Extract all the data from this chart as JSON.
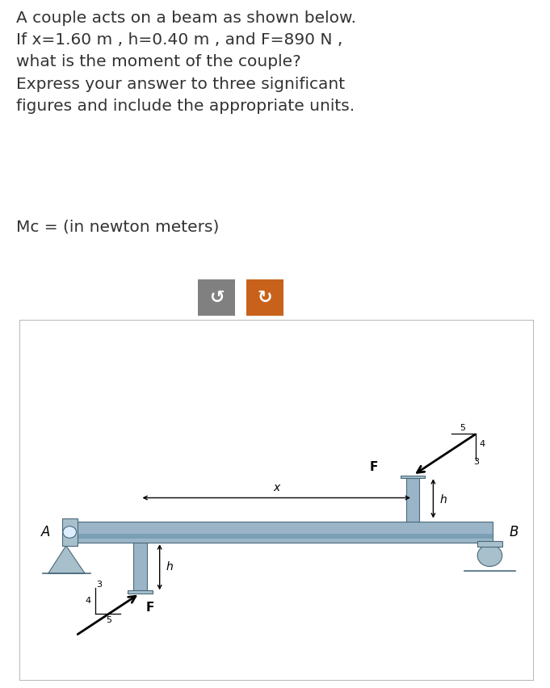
{
  "title_lines": [
    "A couple acts on a beam as shown below.",
    "If x=1.60 m , h=0.40 m , and F=890 N ,",
    "what is the moment of the couple?",
    "Express your answer to three significant",
    "figures and include the appropriate units."
  ],
  "mc_line": "Mc = (in newton meters)",
  "button1_color": "#808080",
  "button2_color": "#c8621a",
  "beam_color": "#9bb5c8",
  "beam_dark": "#6a8ea8",
  "support_color": "#a8bfcc",
  "bg_color": "#ffffff",
  "diagram_bg": "#ffffff",
  "text_color": "#333333",
  "font_size_title": 14.5,
  "font_size_mc": 14.5
}
